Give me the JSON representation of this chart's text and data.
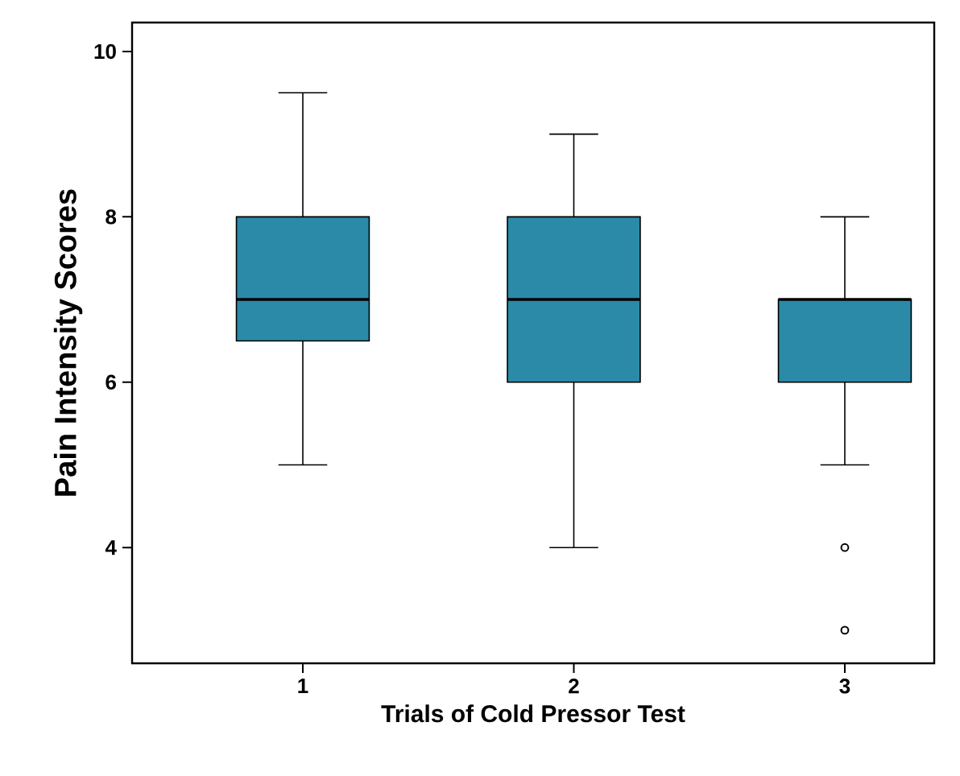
{
  "chart_data": {
    "type": "box",
    "xlabel": "Trials of Cold Pressor Test",
    "ylabel": "Pain Intensity Scores",
    "categories": [
      "1",
      "2",
      "3"
    ],
    "color": "#2a8aa8",
    "boxes": [
      {
        "low": 5,
        "q1": 6.5,
        "median": 7,
        "q3": 8,
        "high": 9.5
      },
      {
        "low": 4,
        "q1": 6,
        "median": 7,
        "q3": 8,
        "high": 9
      },
      {
        "low": 5,
        "q1": 6,
        "median": 7,
        "q3": 7,
        "high": 8,
        "outliers": [
          4,
          3
        ]
      }
    ],
    "ylim": [
      2.6,
      10.35
    ],
    "yticks": [
      4,
      6,
      8,
      10
    ],
    "grid": false
  }
}
